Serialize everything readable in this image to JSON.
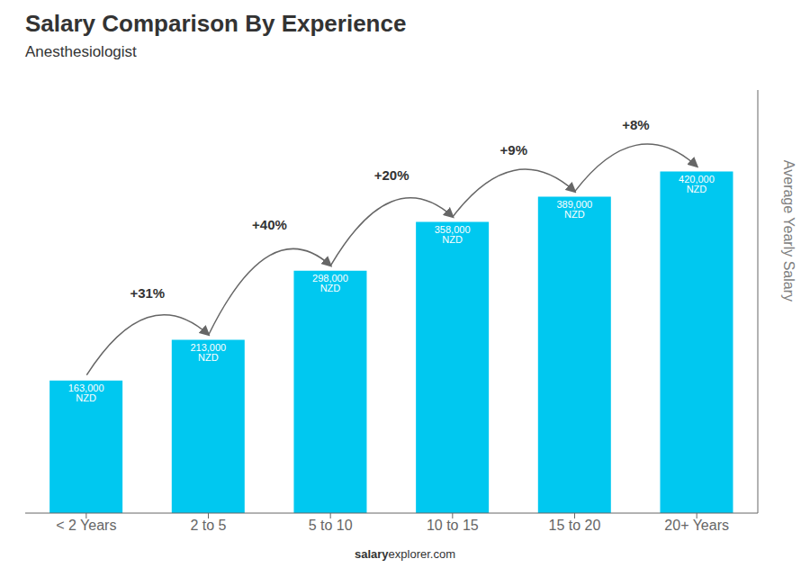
{
  "chart_data": {
    "type": "bar",
    "title": "Salary Comparison By Experience",
    "subtitle": "Anesthesiologist",
    "categories": [
      "< 2 Years",
      "2 to 5",
      "5 to 10",
      "10 to 15",
      "15 to 20",
      "20+ Years"
    ],
    "values": [
      163000,
      213000,
      298000,
      358000,
      389000,
      420000
    ],
    "value_labels": [
      "163,000 NZD",
      "213,000 NZD",
      "298,000 NZD",
      "358,000 NZD",
      "389,000 NZD",
      "420,000 NZD"
    ],
    "data_labels": true,
    "change_labels": [
      null,
      "+31%",
      "+40%",
      "+20%",
      "+9%",
      "+8%"
    ],
    "color": "#00C8F0",
    "ylabel": "Average Yearly Salary",
    "ylim": [
      0,
      520000
    ],
    "grid": false,
    "tick_labels": "x",
    "annotations": [
      "salary",
      "explorer.com"
    ]
  }
}
